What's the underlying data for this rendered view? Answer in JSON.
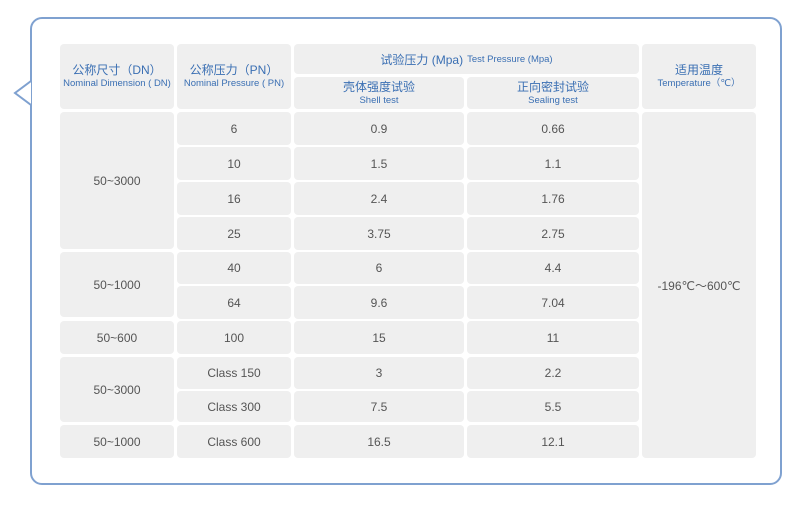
{
  "header": {
    "dn": {
      "zh": "公称尺寸（DN）",
      "en": "Nominal Dimension ( DN)"
    },
    "pn": {
      "zh": "公称压力（PN）",
      "en": "Nominal Pressure ( PN)"
    },
    "test": {
      "zh": "试验压力 (Mpa)",
      "en": "Test Pressure (Mpa)"
    },
    "shell": {
      "zh": "壳体强度试验",
      "en": "Shell test"
    },
    "sealing": {
      "zh": "正向密封试验",
      "en": "Sealing test"
    },
    "temp": {
      "zh": "适用温度",
      "en": "Temperature（℃）"
    }
  },
  "dn_groups": [
    "50~3000",
    "50~1000",
    "50~600",
    "50~3000",
    "50~1000"
  ],
  "rows": [
    {
      "pn": "6",
      "shell": "0.9",
      "sealing": "0.66"
    },
    {
      "pn": "10",
      "shell": "1.5",
      "sealing": "1.1"
    },
    {
      "pn": "16",
      "shell": "2.4",
      "sealing": "1.76"
    },
    {
      "pn": "25",
      "shell": "3.75",
      "sealing": "2.75"
    },
    {
      "pn": "40",
      "shell": "6",
      "sealing": "4.4"
    },
    {
      "pn": "64",
      "shell": "9.6",
      "sealing": "7.04"
    },
    {
      "pn": "100",
      "shell": "15",
      "sealing": "11"
    },
    {
      "pn": "Class 150",
      "shell": "3",
      "sealing": "2.2"
    },
    {
      "pn": "Class 300",
      "shell": "7.5",
      "sealing": "5.5"
    },
    {
      "pn": "Class 600",
      "shell": "16.5",
      "sealing": "12.1"
    }
  ],
  "temperature_range": "-196℃～600℃"
}
